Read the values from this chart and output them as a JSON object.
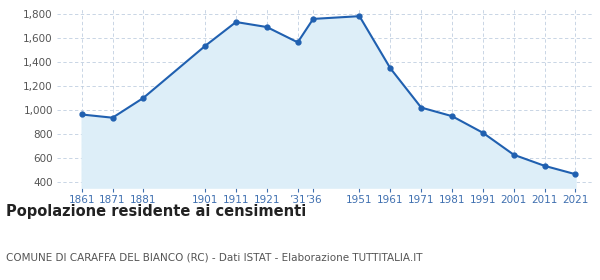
{
  "years": [
    1861,
    1871,
    1881,
    1901,
    1911,
    1921,
    1931,
    1936,
    1951,
    1961,
    1971,
    1981,
    1991,
    2001,
    2011,
    2021
  ],
  "population": [
    962,
    935,
    1101,
    1536,
    1736,
    1694,
    1566,
    1762,
    1785,
    1349,
    1020,
    948,
    809,
    625,
    532,
    462
  ],
  "ylim": [
    350,
    1850
  ],
  "yticks": [
    400,
    600,
    800,
    1000,
    1200,
    1400,
    1600,
    1800
  ],
  "xlim_left": 1853,
  "xlim_right": 2027,
  "line_color": "#2060b0",
  "fill_color": "#ddeef8",
  "fill_bottom": 350,
  "marker_color": "#2060b0",
  "grid_color": "#c0cfe0",
  "background_color": "#ffffff",
  "plot_bg_color": "#ffffff",
  "title": "Popolazione residente ai censimenti",
  "subtitle": "COMUNE DI CARAFFA DEL BIANCO (RC) - Dati ISTAT - Elaborazione TUTTITALIA.IT",
  "title_fontsize": 10.5,
  "subtitle_fontsize": 7.5,
  "tick_label_color": "#4070b0",
  "ytick_label_color": "#555555",
  "x_tick_positions": [
    1861,
    1871,
    1881,
    1901,
    1911,
    1921,
    1931,
    1936,
    1951,
    1961,
    1971,
    1981,
    1991,
    2001,
    2011,
    2021
  ],
  "x_tick_labels": [
    "1861",
    "1871",
    "1881",
    "1901",
    "1911",
    "1921",
    "’31",
    "’36",
    "1951",
    "1961",
    "1971",
    "1981",
    "1991",
    "2001",
    "2011",
    "2021"
  ]
}
